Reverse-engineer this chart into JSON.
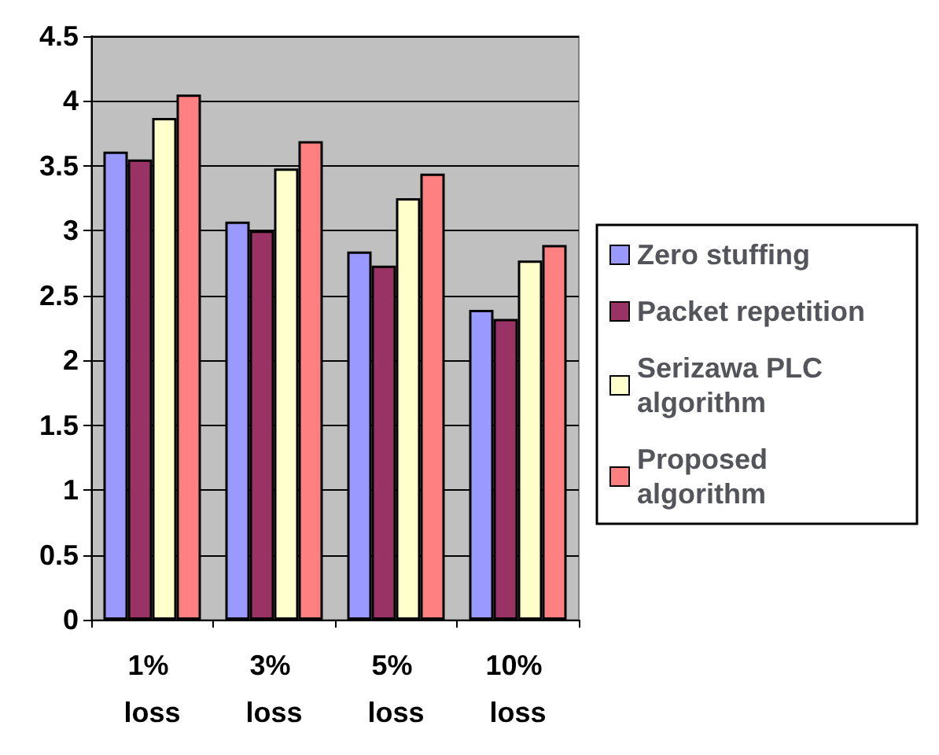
{
  "chart_data": {
    "type": "bar",
    "categories": [
      "1% loss",
      "3% loss",
      "5% loss",
      "10% loss"
    ],
    "series": [
      {
        "name": "Zero stuffing",
        "color": "#9999ff",
        "values": [
          3.61,
          3.07,
          2.84,
          2.39
        ]
      },
      {
        "name": "Packet repetition",
        "color": "#993366",
        "values": [
          3.55,
          3.0,
          2.73,
          2.32
        ]
      },
      {
        "name": "Serizawa PLC algorithm",
        "color": "#ffffcc",
        "values": [
          3.87,
          3.48,
          3.25,
          2.77
        ]
      },
      {
        "name": "Proposed algorithm",
        "color": "#ff8080",
        "values": [
          4.05,
          3.69,
          3.44,
          2.89
        ]
      }
    ],
    "ylim": [
      0,
      4.5
    ],
    "yticks": [
      0,
      0.5,
      1,
      1.5,
      2,
      2.5,
      3,
      3.5,
      4,
      4.5
    ],
    "grid": "y",
    "legend": "right"
  }
}
